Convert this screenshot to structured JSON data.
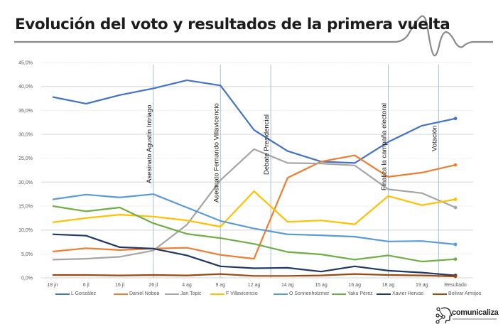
{
  "header": {
    "title": "Evolución del voto y resultados de la primera vuelta",
    "wave_icon": "heartbeat-wave-icon"
  },
  "chart_data": {
    "type": "line",
    "title": "Evolución del voto y resultados de la primera vuelta",
    "xlabel": "",
    "ylabel": "",
    "ylim": [
      0,
      45
    ],
    "y_ticks": [
      "0,0%",
      "5,0%",
      "10,0%",
      "15,0%",
      "20,0%",
      "25,0%",
      "30,0%",
      "35,0%",
      "40,0%",
      "45,0%"
    ],
    "y_tick_values": [
      0,
      5,
      10,
      15,
      20,
      25,
      30,
      35,
      40,
      45
    ],
    "grid": true,
    "legend_position": "bottom",
    "categories": [
      "18 jn",
      "6 jl",
      "16 jl",
      "26 jl",
      "4 ag",
      "9 ag",
      "12 ag",
      "14 ag",
      "15 ag",
      "16 ag",
      "18 ag",
      "19 ag",
      "Resultado"
    ],
    "series": [
      {
        "name": "L González",
        "color": "#4472c4",
        "values": [
          37.8,
          36.4,
          38.2,
          39.6,
          41.3,
          40.2,
          30.9,
          26.5,
          24.3,
          24.0,
          28.4,
          31.8,
          33.3
        ]
      },
      {
        "name": "Daniel Noboa",
        "color": "#ed7d31",
        "values": [
          5.5,
          6.2,
          5.8,
          6.1,
          6.3,
          4.8,
          4.0,
          20.9,
          24.3,
          25.6,
          21.1,
          22.0,
          23.6
        ]
      },
      {
        "name": "Jan Topic",
        "color": "#a5a5a5",
        "values": [
          3.8,
          4.0,
          4.4,
          5.7,
          11.1,
          20.4,
          26.9,
          24.0,
          23.9,
          23.5,
          18.5,
          17.7,
          14.7
        ]
      },
      {
        "name": "F Villavicencio",
        "color": "#ffc000",
        "values": [
          11.6,
          12.5,
          13.2,
          12.8,
          12.0,
          10.7,
          18.1,
          11.7,
          12.0,
          11.2,
          17.1,
          15.2,
          16.4
        ]
      },
      {
        "name": "O Sonnenholzmer",
        "color": "#5b9bd5",
        "values": [
          16.4,
          17.4,
          16.8,
          17.5,
          14.7,
          11.9,
          10.3,
          9.1,
          8.9,
          8.6,
          7.6,
          7.7,
          7.0
        ]
      },
      {
        "name": "Yaku Pérez",
        "color": "#70ad47",
        "values": [
          15.0,
          13.9,
          14.7,
          11.4,
          9.2,
          8.3,
          7.1,
          5.4,
          4.9,
          3.8,
          4.7,
          3.4,
          3.9
        ]
      },
      {
        "name": "Xavier Hervas",
        "color": "#203864",
        "values": [
          9.1,
          8.8,
          6.4,
          6.1,
          4.7,
          2.4,
          2.0,
          2.1,
          1.3,
          2.4,
          1.5,
          1.1,
          0.5
        ]
      },
      {
        "name": "Bolivar Armijos",
        "color": "#9e480e",
        "values": [
          0.6,
          0.6,
          0.5,
          0.6,
          0.5,
          0.8,
          0.4,
          0.4,
          0.5,
          0.8,
          0.6,
          0.5,
          0.3
        ]
      }
    ],
    "annotations": [
      {
        "label": "Asesinato Agustín Intriago",
        "at": "26 jl"
      },
      {
        "label": "Asesinato Fernando Villavicencio",
        "at": "9 ag"
      },
      {
        "label": "Debate Presidencial",
        "at": "13 ag"
      },
      {
        "label": "Finaliza la campaña electoral",
        "at": "18 ag"
      },
      {
        "label": "Votación",
        "at": "20 ag"
      }
    ],
    "annotation_category_index": [
      3,
      5,
      6.5,
      10,
      11.5
    ]
  },
  "footer": {
    "logo_text": "comunicaliza",
    "logo_icon": "head-network-icon"
  }
}
